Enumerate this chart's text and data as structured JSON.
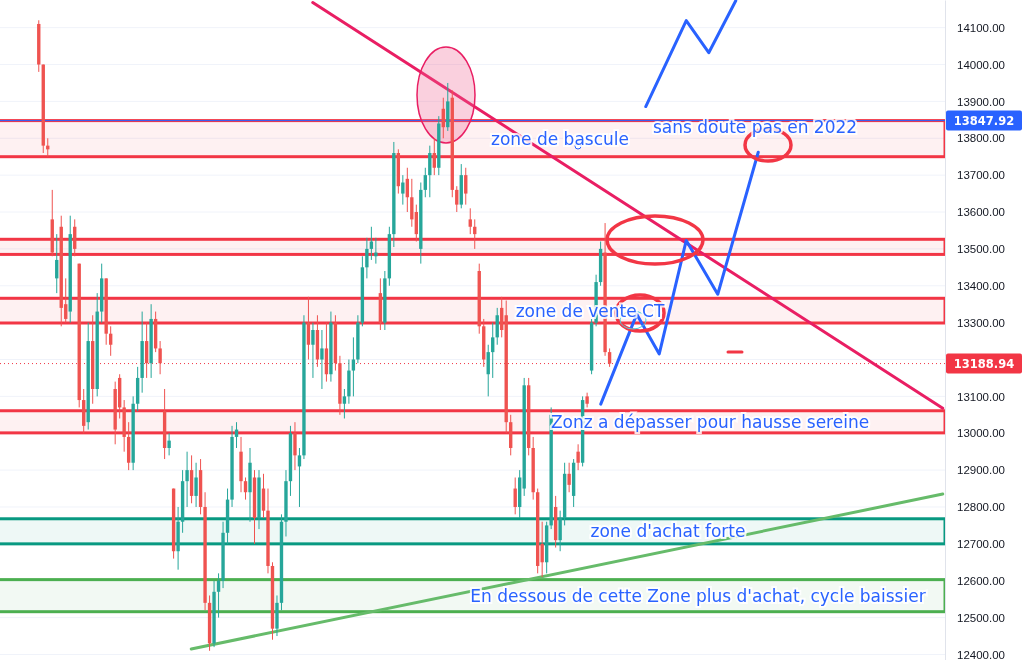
{
  "chart_data": {
    "type": "candlestick",
    "categories": [
      null,
      null,
      null,
      null,
      null,
      null,
      null,
      null,
      null,
      null,
      null,
      null,
      null,
      null,
      null,
      null,
      null,
      null,
      null,
      null,
      null,
      null,
      null,
      null,
      null,
      null,
      null,
      null,
      null,
      null,
      null,
      null,
      null,
      null,
      null,
      null,
      null,
      null,
      null,
      null,
      null,
      null,
      null,
      null,
      null,
      null,
      null,
      null,
      null,
      null,
      null,
      null,
      null,
      null,
      null,
      null,
      null,
      null,
      null,
      null,
      null,
      null,
      null,
      null,
      null,
      null,
      null,
      null,
      null,
      null,
      null,
      null,
      null,
      null,
      null,
      null,
      null,
      null,
      null,
      null,
      null,
      null,
      null,
      null,
      null,
      null,
      null,
      null,
      null,
      null,
      null,
      null,
      null,
      null,
      null,
      null,
      null,
      null,
      null,
      null,
      null,
      null,
      null,
      null,
      null,
      null,
      null,
      null,
      null,
      null,
      null,
      null,
      null,
      null,
      null,
      null,
      null,
      null,
      null,
      null,
      null,
      null,
      null,
      null,
      null,
      null,
      null,
      null,
      null,
      null,
      null,
      null,
      null,
      null,
      null,
      null,
      null,
      null,
      null,
      null,
      null,
      null,
      null,
      null,
      null,
      null,
      null,
      null,
      null,
      null,
      null,
      null,
      null,
      null,
      null,
      null,
      null,
      null,
      null,
      null,
      null,
      null,
      null,
      null,
      null,
      null,
      null,
      null,
      null,
      null,
      null,
      null,
      null,
      null,
      null,
      null,
      null,
      null,
      null,
      null,
      null,
      null,
      null,
      null,
      null,
      null,
      null,
      null,
      null,
      null,
      null,
      null,
      null,
      null,
      null,
      null,
      null,
      null,
      null,
      null,
      null,
      null,
      null,
      null,
      null,
      null,
      null,
      null,
      null,
      null
    ],
    "ohlc": [
      null,
      null,
      null,
      null,
      null,
      null,
      null,
      null,
      [
        14110,
        14120,
        13980,
        14000
      ],
      [
        14000,
        14000,
        13760,
        13780
      ],
      [
        13780,
        13800,
        13750,
        13770
      ],
      [
        13580,
        13660,
        13480,
        13490
      ],
      [
        13420,
        13540,
        13380,
        13470
      ],
      [
        13560,
        13590,
        13290,
        13340
      ],
      [
        13350,
        13420,
        13300,
        13310
      ],
      [
        13330,
        13590,
        13300,
        13540
      ],
      [
        13560,
        13580,
        13480,
        13500
      ],
      [
        13460,
        13460,
        13070,
        13090
      ],
      [
        13090,
        13120,
        13000,
        13020
      ],
      [
        13030,
        13300,
        13010,
        13250
      ],
      [
        13250,
        13320,
        13080,
        13120
      ],
      [
        13120,
        13380,
        13100,
        13330
      ],
      [
        13330,
        13460,
        13300,
        13420
      ],
      [
        13420,
        13420,
        13240,
        13270
      ],
      [
        13270,
        13290,
        13210,
        13240
      ],
      [
        13120,
        13140,
        12970,
        13010
      ],
      [
        13150,
        13160,
        13040,
        13070
      ],
      [
        13070,
        13090,
        12950,
        12990
      ],
      [
        12990,
        13030,
        12900,
        12920
      ],
      [
        12920,
        13100,
        12900,
        13080
      ],
      [
        13080,
        13180,
        13060,
        13150
      ],
      [
        13150,
        13330,
        13110,
        13250
      ],
      [
        13250,
        13300,
        13150,
        13190
      ],
      [
        13190,
        13350,
        13150,
        13310
      ],
      [
        13310,
        13330,
        13220,
        13230
      ],
      [
        13230,
        13250,
        13160,
        13190
      ],
      [
        13060,
        13120,
        12930,
        12960
      ],
      [
        12960,
        13000,
        12940,
        12980
      ],
      [
        12850,
        12850,
        12660,
        12680
      ],
      [
        12680,
        12800,
        12630,
        12760
      ],
      [
        12760,
        12900,
        12730,
        12870
      ],
      [
        12870,
        12950,
        12800,
        12900
      ],
      [
        12900,
        12940,
        12810,
        12830
      ],
      [
        12830,
        12920,
        12800,
        12880
      ],
      [
        12900,
        12930,
        12780,
        12800
      ],
      [
        12800,
        12840,
        12520,
        12540
      ],
      [
        12540,
        12560,
        12410,
        12430
      ],
      [
        12430,
        12600,
        12420,
        12570
      ],
      [
        12570,
        12620,
        12500,
        12600
      ],
      [
        12600,
        12760,
        12580,
        12730
      ],
      [
        12730,
        12850,
        12700,
        12820
      ],
      [
        12820,
        13020,
        12800,
        12990
      ],
      [
        12990,
        13030,
        12960,
        13010
      ],
      [
        12950,
        12990,
        12840,
        12870
      ],
      [
        12870,
        12880,
        12820,
        12840
      ],
      [
        12840,
        12960,
        12760,
        12920
      ],
      [
        12880,
        12900,
        12700,
        12770
      ],
      [
        12770,
        12900,
        12740,
        12880
      ],
      [
        12850,
        12890,
        12770,
        12790
      ],
      [
        12790,
        12850,
        12620,
        12640
      ],
      [
        12640,
        12650,
        12440,
        12470
      ],
      [
        12470,
        12560,
        12450,
        12540
      ],
      [
        12540,
        12780,
        12520,
        12760
      ],
      [
        12760,
        12900,
        12720,
        12870
      ],
      [
        12870,
        13020,
        12830,
        13000
      ],
      [
        13000,
        13030,
        12900,
        12940
      ],
      [
        12910,
        12960,
        12800,
        12940
      ],
      [
        12940,
        13320,
        12930,
        13300
      ],
      [
        13300,
        13370,
        13200,
        13240
      ],
      [
        13240,
        13300,
        13150,
        13280
      ],
      [
        13280,
        13320,
        13180,
        13200
      ],
      [
        13200,
        13280,
        13120,
        13230
      ],
      [
        13230,
        13300,
        13140,
        13160
      ],
      [
        13160,
        13330,
        13140,
        13300
      ],
      [
        13300,
        13320,
        13170,
        13190
      ],
      [
        13190,
        13210,
        13050,
        13080
      ],
      [
        13080,
        13120,
        13040,
        13100
      ],
      [
        13100,
        13200,
        13080,
        13170
      ],
      [
        13170,
        13260,
        13100,
        13200
      ],
      [
        13200,
        13320,
        13190,
        13300
      ],
      [
        13300,
        13480,
        13290,
        13450
      ],
      [
        13450,
        13530,
        13420,
        13500
      ],
      [
        13500,
        13560,
        13470,
        13520
      ],
      [
        13480,
        13530,
        13460,
        13490
      ],
      [
        13380,
        13420,
        13280,
        13300
      ],
      [
        13300,
        13440,
        13280,
        13420
      ],
      [
        13420,
        13560,
        13400,
        13540
      ],
      [
        13540,
        13790,
        13505,
        13760
      ],
      [
        13760,
        13770,
        13650,
        13670
      ],
      [
        13650,
        13700,
        13620,
        13680
      ],
      [
        13690,
        13720,
        13600,
        13640
      ],
      [
        13640,
        13690,
        13560,
        13580
      ],
      [
        13600,
        13620,
        13520,
        13540
      ],
      [
        13500,
        13680,
        13460,
        13660
      ],
      [
        13660,
        13720,
        13640,
        13700
      ],
      [
        13700,
        13780,
        13640,
        13760
      ],
      [
        13760,
        13800,
        13700,
        13720
      ],
      [
        13720,
        13860,
        13700,
        13840
      ],
      [
        13880,
        13910,
        13800,
        13830
      ],
      [
        13830,
        13950,
        13820,
        13900
      ],
      [
        13910,
        13930,
        13640,
        13660
      ],
      [
        13660,
        13670,
        13600,
        13620
      ],
      [
        13620,
        13730,
        13610,
        13700
      ],
      [
        13700,
        13720,
        13620,
        13650
      ],
      [
        13580,
        13610,
        13540,
        13560
      ],
      [
        13560,
        13580,
        13500,
        13540
      ],
      [
        13440,
        13460,
        13270,
        13290
      ],
      [
        13290,
        13310,
        13180,
        13200
      ],
      [
        13160,
        13240,
        13100,
        13220
      ],
      [
        13220,
        13300,
        13150,
        13260
      ],
      [
        13260,
        13340,
        13240,
        13320
      ],
      [
        13340,
        13370,
        13260,
        13280
      ],
      [
        13320,
        13360,
        13000,
        13030
      ],
      [
        13030,
        13050,
        12940,
        12960
      ],
      [
        12850,
        12880,
        12780,
        12800
      ],
      [
        12800,
        12900,
        12770,
        12880
      ],
      [
        12850,
        13150,
        12830,
        13130
      ],
      [
        13130,
        13150,
        12940,
        12960
      ],
      [
        12960,
        12990,
        12820,
        12840
      ],
      [
        12840,
        12850,
        12620,
        12640
      ],
      [
        12700,
        12760,
        12610,
        12650
      ],
      [
        12650,
        12760,
        12620,
        12750
      ],
      [
        12750,
        13070,
        12740,
        13050
      ],
      [
        12800,
        12830,
        12690,
        12710
      ],
      [
        12710,
        12790,
        12680,
        12770
      ],
      [
        12770,
        12920,
        12750,
        12890
      ],
      [
        12890,
        12920,
        12840,
        12860
      ],
      [
        12830,
        12930,
        12800,
        12920
      ],
      [
        12950,
        12970,
        12900,
        12920
      ],
      [
        12920,
        13100,
        12910,
        13090
      ],
      [
        13100,
        13110,
        13070,
        13080
      ],
      [
        13170,
        13310,
        13160,
        13300
      ],
      [
        13300,
        13430,
        13290,
        13410
      ],
      [
        13410,
        13520,
        13400,
        13500
      ],
      [
        13490,
        13570,
        13210,
        13220
      ],
      [
        13220,
        13230,
        13180,
        13188.94
      ],
      null,
      null,
      null,
      null,
      null,
      null,
      null,
      null,
      null,
      null,
      null,
      null,
      null,
      null,
      null,
      null,
      null,
      null,
      null,
      null,
      null,
      null,
      null,
      null,
      null,
      null,
      null,
      null,
      null,
      null,
      null,
      null,
      null,
      null,
      null,
      null,
      null,
      null,
      null,
      null,
      null,
      null,
      null,
      null,
      null,
      null,
      null,
      null,
      null,
      null,
      null,
      null,
      null,
      null,
      null,
      null,
      null,
      null,
      null,
      null,
      null,
      null,
      null,
      null,
      null,
      null,
      null,
      null,
      null,
      null,
      null,
      null,
      null,
      null
    ],
    "series": [
      {
        "type": "line",
        "color": "#e91e63",
        "values": [
          null,
          null,
          null,
          null,
          null,
          null,
          null,
          null,
          null,
          null,
          null,
          null,
          null,
          null,
          null,
          null,
          null,
          null,
          null,
          null,
          null,
          null,
          null,
          null,
          null,
          null,
          null,
          null,
          null,
          null,
          null,
          null,
          null,
          null,
          null,
          null,
          null,
          null,
          null,
          null,
          null,
          null,
          null,
          null,
          null,
          null,
          null,
          null,
          null,
          null,
          null,
          null,
          null,
          null,
          null,
          null,
          null,
          null,
          null,
          null,
          null,
          null,
          null,
          null,
          null,
          null,
          null,
          null,
          null,
          14168,
          null,
          null,
          null,
          null,
          null,
          null,
          null,
          null,
          null,
          null,
          null,
          null,
          null,
          null,
          null,
          null,
          null,
          null,
          null,
          null,
          null,
          null,
          null,
          null,
          null,
          null,
          null,
          null,
          null,
          null,
          null,
          null,
          null,
          null,
          null,
          null,
          null,
          null,
          null,
          null,
          null,
          null,
          null,
          null,
          null,
          null,
          null,
          null,
          null,
          null,
          null,
          null,
          null,
          null,
          null,
          null,
          null,
          null,
          null,
          null,
          null,
          null,
          null,
          null,
          null,
          null,
          null,
          null,
          null,
          null,
          null,
          null,
          null,
          null,
          null,
          null,
          null,
          null,
          null,
          null,
          null,
          null,
          null,
          null,
          null,
          null,
          null,
          null,
          null,
          null,
          null,
          null,
          null,
          null,
          null,
          null,
          null,
          null,
          null,
          null,
          null,
          null,
          null,
          null,
          null,
          null,
          null,
          null,
          null,
          null,
          null,
          null,
          null,
          null,
          null,
          null,
          null,
          null,
          null,
          null,
          null,
          null,
          null,
          null,
          null,
          null,
          null,
          null,
          null,
          null,
          null,
          null,
          null,
          null,
          null,
          null,
          null,
          null,
          null,
          13068
        ]
      },
      {
        "type": "line",
        "color": "#66bb6a",
        "values": [
          null,
          null,
          null,
          null,
          null,
          null,
          null,
          null,
          null,
          null,
          null,
          null,
          null,
          null,
          null,
          null,
          null,
          null,
          null,
          null,
          null,
          null,
          null,
          null,
          null,
          null,
          null,
          null,
          null,
          null,
          null,
          null,
          null,
          null,
          null,
          null,
          null,
          null,
          null,
          null,
          null,
          null,
          12415,
          null,
          null,
          null,
          null,
          null,
          null,
          null,
          null,
          null,
          null,
          null,
          null,
          null,
          null,
          null,
          null,
          null,
          null,
          null,
          null,
          null,
          null,
          null,
          null,
          null,
          null,
          null,
          null,
          null,
          null,
          null,
          null,
          null,
          null,
          null,
          null,
          null,
          null,
          null,
          null,
          null,
          null,
          null,
          null,
          null,
          null,
          null,
          null,
          null,
          null,
          null,
          null,
          null,
          null,
          null,
          null,
          null,
          null,
          null,
          null,
          null,
          null,
          null,
          null,
          null,
          null,
          null,
          null,
          null,
          null,
          null,
          null,
          null,
          null,
          null,
          null,
          null,
          null,
          null,
          null,
          null,
          null,
          null,
          null,
          null,
          null,
          null,
          null,
          null,
          null,
          null,
          null,
          null,
          null,
          null,
          null,
          null,
          null,
          null,
          null,
          null,
          null,
          null,
          null,
          null,
          null,
          null,
          null,
          null,
          null,
          null,
          null,
          null,
          null,
          null,
          null,
          null,
          null,
          null,
          null,
          null,
          null,
          null,
          null,
          null,
          null,
          null,
          null,
          null,
          null,
          null,
          null,
          null,
          null,
          null,
          null,
          null,
          null,
          null,
          null,
          null,
          null,
          null,
          null,
          null,
          null,
          null,
          null,
          null,
          null,
          null,
          null,
          null,
          null,
          null,
          null,
          null,
          null,
          null,
          null,
          null,
          null,
          null,
          null,
          null,
          null,
          12835
        ]
      },
      {
        "type": "line",
        "color": "#2962ff",
        "values": [
          null,
          null,
          null,
          null,
          null,
          null,
          null,
          null,
          null,
          null,
          null,
          null,
          null,
          null,
          null,
          null,
          null,
          null,
          null,
          null,
          null,
          null,
          null,
          null,
          null,
          null,
          null,
          null,
          null,
          null,
          null,
          null,
          null,
          null,
          null,
          null,
          null,
          null,
          null,
          null,
          null,
          null,
          null,
          null,
          null,
          null,
          null,
          null,
          null,
          null,
          null,
          null,
          null,
          null,
          null,
          null,
          null,
          null,
          null,
          null,
          null,
          null,
          null,
          null,
          null,
          null,
          null,
          null,
          null,
          null,
          null,
          null,
          null,
          null,
          null,
          null,
          null,
          null,
          null,
          null,
          null,
          null,
          null,
          null,
          null,
          null,
          null,
          null,
          null,
          null,
          null,
          null,
          null,
          null,
          null,
          null,
          null,
          null,
          null,
          null,
          null,
          null,
          null,
          null,
          null,
          null,
          null,
          null,
          null,
          null,
          null,
          null,
          null,
          null,
          null,
          null,
          null,
          null,
          null,
          null,
          null,
          null,
          null,
          null,
          null,
          null,
          null,
          null,
          null,
          null,
          null,
          null,
          null,
          13079,
          null,
          null,
          null,
          null,
          null,
          null,
          null,
          13323,
          null,
          null,
          null,
          null,
          13215,
          null,
          null,
          null,
          null,
          null,
          13523,
          null,
          null,
          null,
          null,
          null,
          null,
          13377,
          null,
          null,
          null,
          null,
          null,
          null,
          null,
          null,
          13762,
          null,
          null,
          null,
          null,
          null,
          null,
          null,
          null,
          null,
          null,
          null,
          null,
          null,
          null,
          null,
          null,
          null,
          null,
          null,
          null,
          null,
          null,
          null,
          null,
          null,
          null,
          null,
          null,
          null,
          null,
          null,
          null,
          null,
          null,
          null,
          null,
          null,
          null,
          null,
          null,
          null
        ]
      },
      {
        "type": "line",
        "color": "#2962ff",
        "values": [
          null,
          null,
          null,
          null,
          null,
          null,
          null,
          null,
          null,
          null,
          null,
          null,
          null,
          null,
          null,
          null,
          null,
          null,
          null,
          null,
          null,
          null,
          null,
          null,
          null,
          null,
          null,
          null,
          null,
          null,
          null,
          null,
          null,
          null,
          null,
          null,
          null,
          null,
          null,
          null,
          null,
          null,
          null,
          null,
          null,
          null,
          null,
          null,
          null,
          null,
          null,
          null,
          null,
          null,
          null,
          null,
          null,
          null,
          null,
          null,
          null,
          null,
          null,
          null,
          null,
          null,
          null,
          null,
          null,
          null,
          null,
          null,
          null,
          null,
          null,
          null,
          null,
          null,
          null,
          null,
          null,
          null,
          null,
          null,
          null,
          null,
          null,
          null,
          null,
          null,
          null,
          null,
          null,
          null,
          null,
          null,
          null,
          null,
          null,
          null,
          null,
          null,
          null,
          null,
          null,
          null,
          null,
          null,
          null,
          null,
          null,
          null,
          null,
          null,
          null,
          null,
          null,
          null,
          null,
          null,
          null,
          null,
          null,
          null,
          null,
          null,
          null,
          null,
          null,
          null,
          null,
          null,
          null,
          null,
          null,
          null,
          null,
          null,
          null,
          null,
          null,
          null,
          null,
          13886,
          null,
          null,
          null,
          null,
          null,
          null,
          null,
          null,
          14119,
          null,
          null,
          null,
          null,
          14032,
          null,
          null,
          null,
          null,
          null,
          14173,
          null,
          null,
          null,
          null,
          null,
          null,
          null,
          null,
          null,
          null,
          null,
          null,
          null,
          null,
          null,
          null,
          null,
          null,
          null,
          null,
          null,
          null,
          null,
          null,
          null,
          null,
          null,
          null,
          null,
          null,
          null,
          null,
          null,
          null,
          null,
          null,
          null,
          null,
          null,
          null,
          null,
          null,
          null,
          null,
          null,
          null
        ]
      }
    ],
    "ylim": [
      12385,
      14175
    ],
    "yticks": [
      {
        "value": 12400,
        "label": "12400.00"
      },
      {
        "value": 12500,
        "label": "12500.00"
      },
      {
        "value": 12600,
        "label": "12600.00"
      },
      {
        "value": 12700,
        "label": "12700.00"
      },
      {
        "value": 12800,
        "label": "12800.00"
      },
      {
        "value": 12900,
        "label": "12900.00"
      },
      {
        "value": 13000,
        "label": "13000.00"
      },
      {
        "value": 13100,
        "label": "13100.00"
      },
      {
        "value": 13200,
        "label": null
      },
      {
        "value": 13300,
        "label": "13300.00"
      },
      {
        "value": 13400,
        "label": "13400.00"
      },
      {
        "value": 13500,
        "label": "13500.00"
      },
      {
        "value": 13600,
        "label": "13600.00"
      },
      {
        "value": 13700,
        "label": "13700.00"
      },
      {
        "value": 13800,
        "label": "13800.00"
      },
      {
        "value": 13900,
        "label": "13900.00"
      },
      {
        "value": 14000,
        "label": "14000.00"
      },
      {
        "value": 14100,
        "label": "14100.00"
      }
    ],
    "bands": [
      {
        "axis": "y",
        "from": 13750,
        "to": 13847.92,
        "label": "zone de bascule",
        "color": "#f23645"
      },
      {
        "axis": "y",
        "from": 13485,
        "to": 13526,
        "color": "#f23645"
      },
      {
        "axis": "y",
        "from": 13299,
        "to": 13366,
        "label": "zone de vente CT",
        "color": "#f23645"
      },
      {
        "axis": "y",
        "from": 13001,
        "to": 13061,
        "label": "Zonz a dépasser pour hausse sereine",
        "color": "#f23645"
      },
      {
        "axis": "y",
        "from": 12700,
        "to": 12768,
        "label": "zone d'achat forte",
        "color": "#089981"
      },
      {
        "axis": "y",
        "from": 12516,
        "to": 12603,
        "label": "En dessous de cette Zone plus d'achat, cycle baissier",
        "color": "#4caf50"
      }
    ],
    "ref_lines": [
      {
        "axis": "y",
        "value": 13847.92,
        "label": "13847.92",
        "color": "#2962ff",
        "line_style": "solid"
      },
      {
        "axis": "y",
        "value": 13188.94,
        "label": "13188.94",
        "color": "#f23645",
        "line_style": "dotted"
      }
    ],
    "annotations": [
      "sans doute pas en 2022"
    ],
    "grid": "y"
  }
}
